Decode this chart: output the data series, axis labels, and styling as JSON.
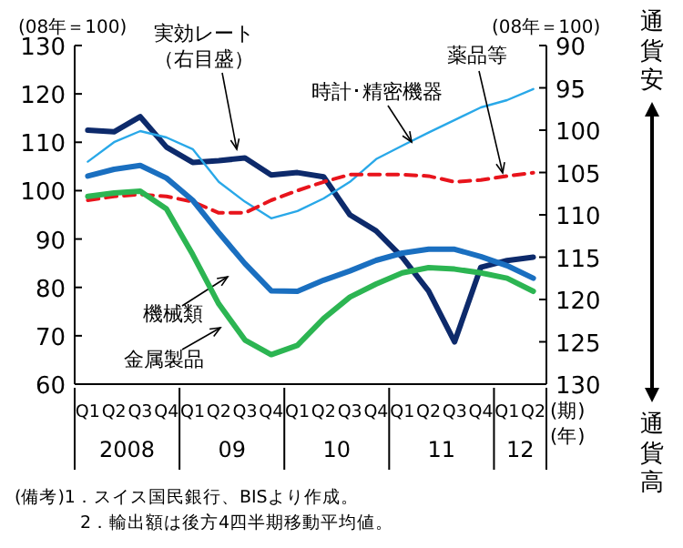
{
  "chart_data": {
    "type": "line",
    "categories": [
      "Q1",
      "Q2",
      "Q3",
      "Q4",
      "Q1",
      "Q2",
      "Q3",
      "Q4",
      "Q1",
      "Q2",
      "Q3",
      "Q4",
      "Q1",
      "Q2",
      "Q3",
      "Q4",
      "Q1",
      "Q2"
    ],
    "ylabel": "(08年＝100)",
    "y2label": "(08年＝100)",
    "xlabel": "(期)",
    "x2label": "(年)",
    "ylim": [
      60,
      130
    ],
    "yticks": [
      60,
      70,
      80,
      90,
      100,
      110,
      120,
      130
    ],
    "y2lim": [
      130,
      90
    ],
    "y2ticks": [
      90,
      95,
      100,
      105,
      110,
      115,
      120,
      125,
      130
    ],
    "series": [
      {
        "name": "実効レート（右目盛）",
        "color": "#0d2a6b",
        "axis": "y2",
        "values": [
          100,
          100.2,
          98.4,
          102,
          103.8,
          103.6,
          103.3,
          105.3,
          105,
          105.5,
          110,
          111.9,
          115,
          119,
          125,
          116.2,
          115.4,
          115
        ]
      },
      {
        "name": "時計･精密機器",
        "color": "#29a8e8",
        "values": [
          106,
          110,
          112.3,
          111,
          108.6,
          101.8,
          97.7,
          94.3,
          95.8,
          98.4,
          101.8,
          106.5,
          109.3,
          112,
          114.6,
          117.2,
          118.7,
          121
        ]
      },
      {
        "name": "薬品等",
        "color": "#e8141c",
        "line_style": "dashed",
        "values": [
          98,
          98.8,
          99.2,
          98.8,
          97.7,
          95.4,
          95.4,
          98,
          100,
          101.8,
          103.3,
          103.3,
          103.3,
          103,
          101.8,
          102.2,
          103,
          103.7
        ]
      },
      {
        "name": "機械類",
        "color": "#1a6fc0",
        "values": [
          103,
          104.4,
          105.2,
          102.6,
          98,
          91.3,
          84.9,
          79.3,
          79.2,
          81.5,
          83.4,
          85.6,
          87.1,
          87.9,
          87.9,
          86.4,
          84.5,
          81.9
        ]
      },
      {
        "name": "金属製品",
        "color": "#2cb552",
        "values": [
          98.8,
          99.5,
          99.9,
          96.2,
          86.8,
          76.6,
          69.1,
          66.1,
          68,
          73.6,
          78,
          80.7,
          83,
          84.1,
          83.8,
          83,
          81.9,
          79.2
        ]
      }
    ],
    "annotations": [
      "2008",
      "09",
      "10",
      "11",
      "12",
      "通貨安",
      "通貨高",
      "(備考)1．スイス国民銀行、BISより作成。",
      "2．輸出額は後方4四半期移動平均値。"
    ],
    "grid": false,
    "legend": false,
    "marker": "none"
  }
}
